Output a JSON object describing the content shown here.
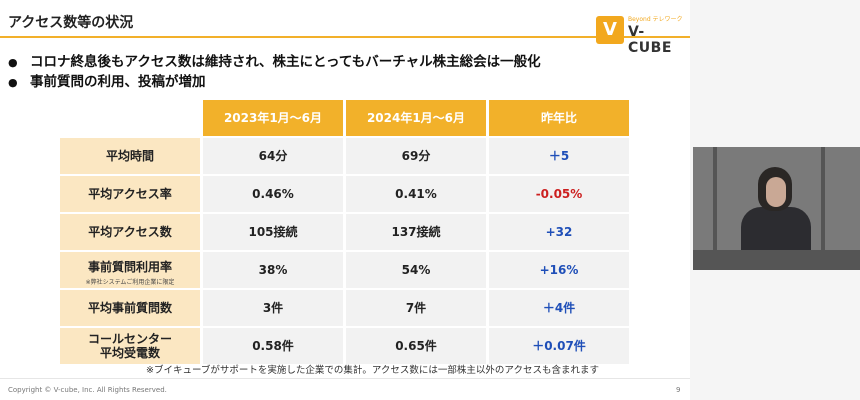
{
  "slide": {
    "title": "アクセス数等の状況",
    "logo": {
      "mark": "V",
      "tagline": "Beyond テレワーク",
      "text": "V-CUBE"
    },
    "bullets": [
      "コロナ終息後もアクセス数は維持され、株主にとってもバーチャル株主総会は一般化",
      "事前質問の利用、投稿が増加"
    ],
    "table": {
      "headers": [
        "2023年1月〜6月",
        "2024年1月〜6月",
        "昨年比"
      ],
      "rows": [
        {
          "label": "平均時間",
          "note": "",
          "v2023": "64分",
          "v2024": "69分",
          "diff": "＋5"
        },
        {
          "label": "平均アクセス率",
          "note": "",
          "v2023": "0.46%",
          "v2024": "0.41%",
          "diff": "-0.05%"
        },
        {
          "label": "平均アクセス数",
          "note": "",
          "v2023": "105接続",
          "v2024": "137接続",
          "diff": "+32"
        },
        {
          "label": "事前質問利用率",
          "note": "※弊社システムご利用企業に限定",
          "v2023": "38%",
          "v2024": "54%",
          "diff": "+16%"
        },
        {
          "label": "平均事前質問数",
          "note": "",
          "v2023": "3件",
          "v2024": "7件",
          "diff": "＋4件"
        },
        {
          "label": "コールセンター\n平均受電数",
          "note": "",
          "v2023": "0.58件",
          "v2024": "0.65件",
          "diff": "＋0.07件"
        }
      ]
    },
    "footnote": "※ブイキューブがサポートを実施した企業での集計。アクセス数には一部株主以外のアクセスも含まれます",
    "copyright": "Copyright © V-cube, Inc. All Rights Reserved.",
    "page_number": "9"
  },
  "colors": {
    "accent": "#f2b12a",
    "label_bg": "#fbe7c2",
    "positive": "#1f4fb8",
    "negative": "#cc1f1f"
  }
}
